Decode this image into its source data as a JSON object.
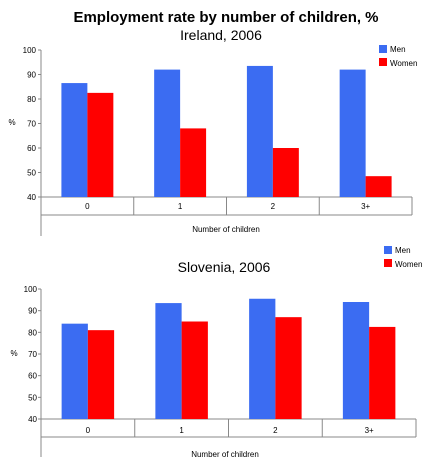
{
  "main_title": "Employment rate by number of children, %",
  "chart_data": [
    {
      "type": "bar",
      "title": "Ireland, 2006",
      "xlabel": "Number of children",
      "ylabel": "%",
      "ylim": [
        40,
        100
      ],
      "yticks": [
        40,
        50,
        60,
        70,
        80,
        90,
        100
      ],
      "categories": [
        "0",
        "1",
        "2",
        "3+"
      ],
      "legend_position": "top-right",
      "series": [
        {
          "name": "Men",
          "color": "#3b6cf2",
          "values": [
            86.5,
            92,
            93.5,
            92
          ]
        },
        {
          "name": "Women",
          "color": "#ff0000",
          "values": [
            82.5,
            68,
            60,
            48.5
          ]
        }
      ]
    },
    {
      "type": "bar",
      "title": "Slovenia, 2006",
      "xlabel": "Number of children",
      "ylabel": "%",
      "ylim": [
        40,
        100
      ],
      "yticks": [
        40,
        50,
        60,
        70,
        80,
        90,
        100
      ],
      "categories": [
        "0",
        "1",
        "2",
        "3+"
      ],
      "legend_position": "top-right",
      "series": [
        {
          "name": "Men",
          "color": "#3b6cf2",
          "values": [
            84,
            93.5,
            95.5,
            94
          ]
        },
        {
          "name": "Women",
          "color": "#ff0000",
          "values": [
            81,
            85,
            87,
            82.5
          ]
        }
      ]
    }
  ]
}
